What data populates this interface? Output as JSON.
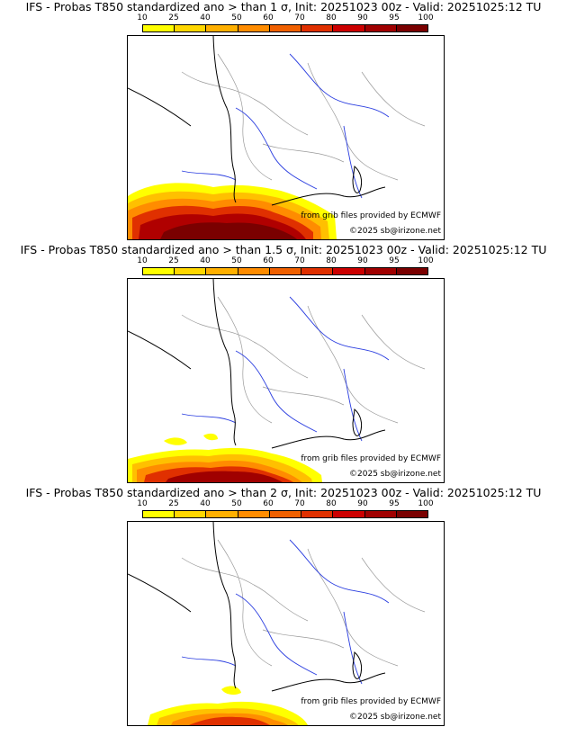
{
  "colorbar": {
    "ticks": [
      "10",
      "25",
      "40",
      "50",
      "60",
      "70",
      "80",
      "90",
      "95",
      "100"
    ],
    "colors": [
      "#ffff00",
      "#ffd700",
      "#ffb000",
      "#ff8c00",
      "#f06000",
      "#e03000",
      "#cc0000",
      "#a00000",
      "#7a0000"
    ]
  },
  "colors": {
    "coast": "#000000",
    "rivers": "#2b3ee0",
    "borders": "#9a9a9a",
    "anomaly_low": "#ffff00",
    "anomaly_high": "#8b0000"
  },
  "panels": [
    {
      "title": "IFS - Probas T850  standardized ano > than 1 σ, Init: 20251023 00z - Valid: 20251025:12 TU",
      "credit_source": "from grib files provided by ECMWF",
      "credit_copyright": "©2025 sb@irizone.net"
    },
    {
      "title": "IFS - Probas T850  standardized ano > than 1.5 σ, Init: 20251023 00z - Valid: 20251025:12 TU",
      "credit_source": "from grib files provided by ECMWF",
      "credit_copyright": "©2025 sb@irizone.net"
    },
    {
      "title": "IFS - Probas T850  standardized ano > than 2 σ, Init: 20251023 00z - Valid: 20251025:12 TU",
      "credit_source": "from grib files provided by ECMWF",
      "credit_copyright": "©2025 sb@irizone.net"
    }
  ]
}
